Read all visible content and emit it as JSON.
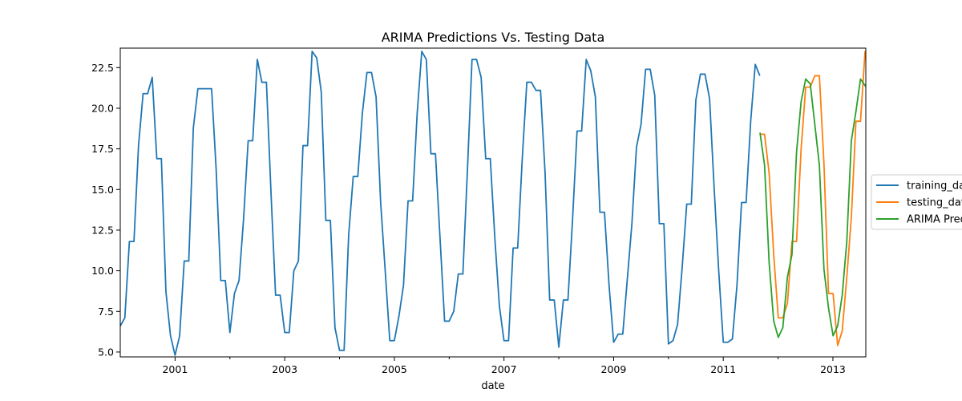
{
  "chart_data": {
    "type": "line",
    "title": "ARIMA Predictions Vs. Testing Data",
    "xlabel": "date",
    "ylabel": "",
    "xlim": [
      2000.0,
      2013.6
    ],
    "ylim": [
      4.7,
      23.7
    ],
    "x_ticks": [
      2001,
      2003,
      2005,
      2007,
      2009,
      2011,
      2013
    ],
    "x_tick_labels": [
      "2001",
      "2003",
      "2005",
      "2007",
      "2009",
      "2011",
      "2013"
    ],
    "x_minor_ticks": [
      2002,
      2004,
      2006,
      2008,
      2010,
      2012
    ],
    "y_ticks": [
      5.0,
      7.5,
      10.0,
      12.5,
      15.0,
      17.5,
      20.0,
      22.5
    ],
    "y_tick_labels": [
      "5.0",
      "7.5",
      "10.0",
      "12.5",
      "15.0",
      "17.5",
      "20.0",
      "22.5"
    ],
    "grid": false,
    "legend_placement": "right-outside",
    "series": [
      {
        "name": "training_data",
        "color": "#1f77b4",
        "x_start": 2000.0,
        "x_step": 0.0833333,
        "values": [
          6.6,
          7.1,
          11.8,
          11.8,
          17.7,
          20.9,
          20.9,
          21.9,
          16.9,
          16.9,
          8.7,
          6.0,
          4.8,
          6.0,
          10.6,
          10.6,
          18.8,
          21.2,
          21.2,
          21.2,
          21.2,
          16.2,
          9.4,
          9.4,
          6.2,
          8.6,
          9.4,
          13.2,
          18.0,
          18.0,
          23.0,
          21.6,
          21.6,
          14.8,
          8.5,
          8.5,
          6.2,
          6.2,
          10.0,
          10.6,
          17.7,
          17.7,
          23.5,
          23.1,
          21.0,
          13.1,
          13.1,
          6.5,
          5.1,
          5.1,
          12.2,
          15.8,
          15.8,
          19.7,
          22.2,
          22.2,
          20.7,
          14.2,
          10.0,
          5.7,
          5.7,
          7.2,
          9.1,
          14.3,
          14.3,
          19.7,
          23.5,
          23.0,
          17.2,
          17.2,
          12.0,
          6.9,
          6.9,
          7.5,
          9.8,
          9.8,
          16.2,
          23.0,
          23.0,
          21.9,
          16.9,
          16.9,
          12.0,
          7.8,
          5.7,
          5.7,
          11.4,
          11.4,
          16.9,
          21.6,
          21.6,
          21.1,
          21.1,
          16.0,
          8.2,
          8.2,
          5.3,
          8.2,
          8.2,
          13.1,
          18.6,
          18.6,
          23.0,
          22.3,
          20.7,
          13.6,
          13.6,
          9.1,
          5.6,
          6.1,
          6.1,
          9.5,
          12.9,
          17.6,
          19.0,
          22.4,
          22.4,
          20.8,
          12.9,
          12.9,
          5.5,
          5.7,
          6.7,
          10.2,
          14.1,
          14.1,
          20.5,
          22.1,
          22.1,
          20.6,
          15.1,
          10.0,
          5.6,
          5.6,
          5.8,
          9.1,
          14.2,
          14.2,
          19.2,
          22.7,
          22.0
        ]
      },
      {
        "name": "testing_data",
        "color": "#ff7f0e",
        "x_start": 2011.67,
        "x_step": 0.0833333,
        "values": [
          18.4,
          18.4,
          16.0,
          11.0,
          7.1,
          7.1,
          8.0,
          11.8,
          11.8,
          17.5,
          21.3,
          21.3,
          22.0,
          22.0,
          16.6,
          8.6,
          8.6,
          5.4,
          6.3,
          9.6,
          13.3,
          19.2,
          19.2,
          23.5,
          21.2
        ]
      },
      {
        "name": "ARIMA Predictions",
        "color": "#2ca02c",
        "x_start": 2011.67,
        "x_step": 0.0833333,
        "values": [
          18.5,
          16.5,
          10.5,
          6.9,
          5.9,
          6.5,
          9.6,
          11.0,
          17.3,
          20.4,
          21.8,
          21.5,
          19.0,
          16.5,
          10.1,
          7.7,
          6.0,
          6.6,
          8.5,
          11.8,
          18.0,
          19.8,
          21.8,
          21.4,
          21.0
        ]
      }
    ]
  }
}
